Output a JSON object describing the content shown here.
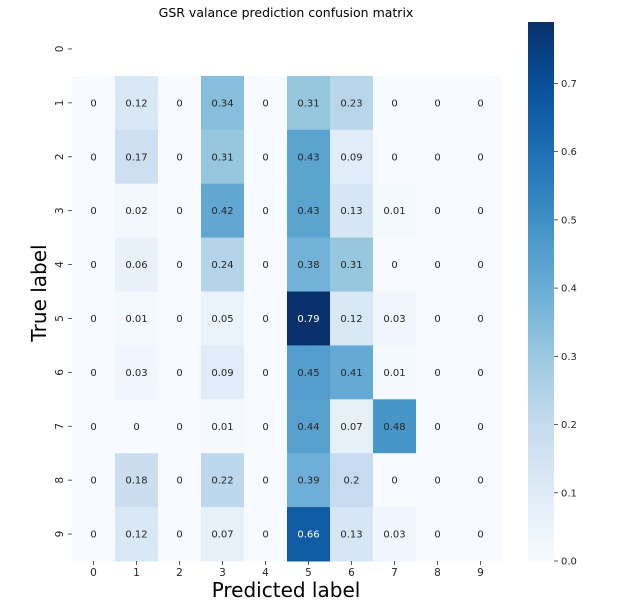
{
  "chart_data": {
    "type": "heatmap",
    "title": "GSR valance prediction confusion matrix",
    "xlabel": "Predicted label",
    "ylabel": "True label",
    "x_ticks": [
      "0",
      "1",
      "2",
      "3",
      "4",
      "5",
      "6",
      "7",
      "8",
      "9"
    ],
    "y_ticks": [
      "0",
      "1",
      "2",
      "3",
      "4",
      "5",
      "6",
      "7",
      "8",
      "9"
    ],
    "matrix": [
      [
        null,
        null,
        null,
        null,
        null,
        null,
        null,
        null,
        null,
        null
      ],
      [
        0,
        0.12,
        0,
        0.34,
        0,
        0.31,
        0.23,
        0,
        0,
        0
      ],
      [
        0,
        0.17,
        0,
        0.31,
        0,
        0.43,
        0.09,
        0,
        0,
        0
      ],
      [
        0,
        0.02,
        0,
        0.42,
        0,
        0.43,
        0.13,
        0.01,
        0,
        0
      ],
      [
        0,
        0.06,
        0,
        0.24,
        0,
        0.38,
        0.31,
        0,
        0,
        0
      ],
      [
        0,
        0.01,
        0,
        0.05,
        0,
        0.79,
        0.12,
        0.03,
        0,
        0
      ],
      [
        0,
        0.03,
        0,
        0.09,
        0,
        0.45,
        0.41,
        0.01,
        0,
        0
      ],
      [
        0,
        0,
        0,
        0.01,
        0,
        0.44,
        0.07,
        0.48,
        0,
        0
      ],
      [
        0,
        0.18,
        0,
        0.22,
        0,
        0.39,
        0.2,
        0,
        0,
        0
      ],
      [
        0,
        0.12,
        0,
        0.07,
        0,
        0.66,
        0.13,
        0.03,
        0,
        0
      ]
    ],
    "colormap": "Blues",
    "colorbar": {
      "vmin": 0,
      "vmax": 0.79,
      "ticks": [
        "0.0",
        "0.1",
        "0.2",
        "0.3",
        "0.4",
        "0.5",
        "0.6",
        "0.7"
      ]
    },
    "grid": false
  }
}
